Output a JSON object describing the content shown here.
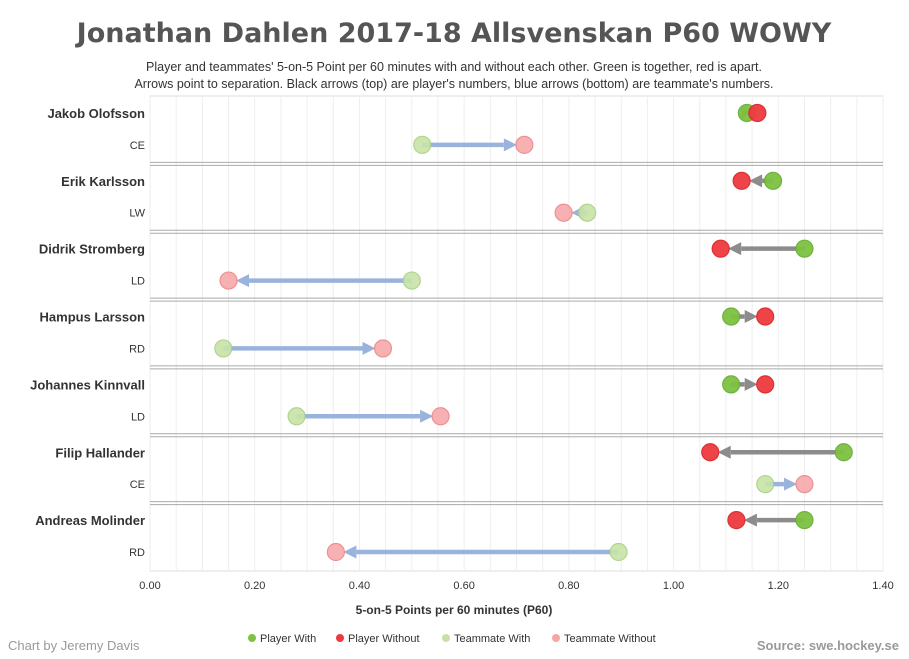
{
  "chart_data": {
    "type": "dumbbell-arrow",
    "title": "Jonathan Dahlen 2017-18 Allsvenskan P60 WOWY",
    "subtitle_lines": [
      "Player and teammates' 5-on-5 Point per 60 minutes with and without each other.  Green is together, red is apart.",
      "Arrows point to separation.  Black arrows (top) are player's numbers, blue arrows (bottom) are teammate's numbers."
    ],
    "xlabel": "5-on-5 Points per 60 minutes (P60)",
    "xlim": [
      0,
      1.4
    ],
    "xticks": [
      "0.00",
      "0.20",
      "0.40",
      "0.60",
      "0.80",
      "1.00",
      "1.20",
      "1.40"
    ],
    "legend": [
      {
        "label": "Player With",
        "color": "#7dc242"
      },
      {
        "label": "Player Without",
        "color": "#ee3a3f"
      },
      {
        "label": "Teammate With",
        "color": "#c5e2a5"
      },
      {
        "label": "Teammate Without",
        "color": "#f6a6a8"
      }
    ],
    "credit": "Chart by Jeremy Davis",
    "source": "Source: swe.hockey.se",
    "teammates": [
      {
        "name": "Jakob Olofsson",
        "pos": "CE",
        "player_with": 1.14,
        "player_without": 1.16,
        "teammate_with": 0.52,
        "teammate_without": 0.715
      },
      {
        "name": "Erik Karlsson",
        "pos": "LW",
        "player_with": 1.19,
        "player_without": 1.13,
        "teammate_with": 0.835,
        "teammate_without": 0.79
      },
      {
        "name": "Didrik Stromberg",
        "pos": "LD",
        "player_with": 1.25,
        "player_without": 1.09,
        "teammate_with": 0.5,
        "teammate_without": 0.15
      },
      {
        "name": "Hampus Larsson",
        "pos": "RD",
        "player_with": 1.11,
        "player_without": 1.175,
        "teammate_with": 0.14,
        "teammate_without": 0.445
      },
      {
        "name": "Johannes Kinnvall",
        "pos": "LD",
        "player_with": 1.11,
        "player_without": 1.175,
        "teammate_with": 0.28,
        "teammate_without": 0.555
      },
      {
        "name": "Filip Hallander",
        "pos": "CE",
        "player_with": 1.325,
        "player_without": 1.07,
        "teammate_with": 1.175,
        "teammate_without": 1.25
      },
      {
        "name": "Andreas Molinder",
        "pos": "RD",
        "player_with": 1.25,
        "player_without": 1.12,
        "teammate_with": 0.895,
        "teammate_without": 0.355
      }
    ]
  }
}
